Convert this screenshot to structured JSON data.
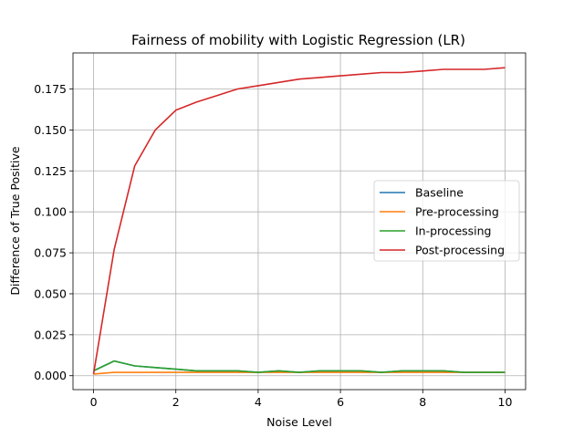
{
  "chart_data": {
    "type": "line",
    "title": "Fairness of mobility with Logistic Regression (LR)",
    "xlabel": "Noise Level",
    "ylabel": "Difference of True Positive",
    "xlim": [
      -0.5,
      10.5
    ],
    "ylim": [
      -0.0085,
      0.197
    ],
    "xticks": [
      0,
      2,
      4,
      6,
      8,
      10
    ],
    "xtick_labels": [
      "0",
      "2",
      "4",
      "6",
      "8",
      "10"
    ],
    "yticks": [
      0.0,
      0.025,
      0.05,
      0.075,
      0.1,
      0.125,
      0.15,
      0.175
    ],
    "ytick_labels": [
      "0.000",
      "0.025",
      "0.050",
      "0.075",
      "0.100",
      "0.125",
      "0.150",
      "0.175"
    ],
    "grid": true,
    "legend_position": "center-right",
    "x": [
      0,
      0.5,
      1,
      1.5,
      2,
      2.5,
      3,
      3.5,
      4,
      4.5,
      5,
      5.5,
      6,
      6.5,
      7,
      7.5,
      8,
      8.5,
      9,
      9.5,
      10
    ],
    "series": [
      {
        "name": "Baseline",
        "color": "#1f77b4",
        "values": [
          0.003,
          0.009,
          0.006,
          0.005,
          0.004,
          0.003,
          0.003,
          0.003,
          0.002,
          0.003,
          0.002,
          0.003,
          0.003,
          0.003,
          0.002,
          0.003,
          0.003,
          0.003,
          0.002,
          0.002,
          0.002
        ]
      },
      {
        "name": "Pre-processing",
        "color": "#ff7f0e",
        "values": [
          0.001,
          0.002,
          0.002,
          0.002,
          0.002,
          0.002,
          0.002,
          0.002,
          0.002,
          0.002,
          0.002,
          0.002,
          0.002,
          0.002,
          0.002,
          0.002,
          0.002,
          0.002,
          0.002,
          0.002,
          0.002
        ]
      },
      {
        "name": "In-processing",
        "color": "#2ca02c",
        "values": [
          0.003,
          0.009,
          0.006,
          0.005,
          0.004,
          0.003,
          0.003,
          0.003,
          0.002,
          0.003,
          0.002,
          0.003,
          0.003,
          0.003,
          0.002,
          0.003,
          0.003,
          0.003,
          0.002,
          0.002,
          0.002
        ]
      },
      {
        "name": "Post-processing",
        "color": "#d62728",
        "values": [
          0.001,
          0.077,
          0.128,
          0.15,
          0.162,
          0.167,
          0.171,
          0.175,
          0.177,
          0.179,
          0.181,
          0.182,
          0.183,
          0.184,
          0.185,
          0.185,
          0.186,
          0.187,
          0.187,
          0.187,
          0.188
        ]
      }
    ]
  }
}
